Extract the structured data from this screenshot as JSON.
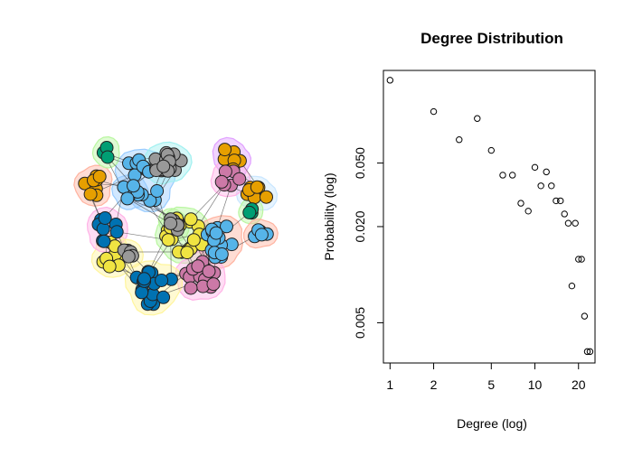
{
  "network": {
    "community_colors": [
      "#56B4E9",
      "#999999",
      "#F0E442",
      "#0072B2",
      "#CC79A7",
      "#E69F00",
      "#009E73",
      "#D55E00"
    ],
    "hull_colors": [
      "#99CCFF",
      "#FFF59D",
      "#B9F6A0",
      "#FFB3A0",
      "#E0A0FF",
      "#A0F0F0",
      "#FFB3E6",
      "#C8E6FF"
    ],
    "node_count": 200
  },
  "chart_data": {
    "type": "scatter",
    "title": "Degree Distribution",
    "xlabel": "Degree (log)",
    "ylabel": "Probability (log)",
    "log_x": true,
    "log_y": true,
    "xlim": [
      0.9,
      26
    ],
    "ylim": [
      0.0028,
      0.19
    ],
    "x_ticks": [
      1,
      2,
      5,
      10,
      20
    ],
    "x_tick_labels": [
      "1",
      "2",
      "5",
      "10",
      "20"
    ],
    "y_ticks": [
      0.005,
      0.02,
      0.05
    ],
    "y_tick_labels": [
      "0.005",
      "0.020",
      "0.050"
    ],
    "grid": false,
    "marker": "open-circle",
    "points": [
      {
        "x": 1,
        "y": 0.165
      },
      {
        "x": 2,
        "y": 0.105
      },
      {
        "x": 3,
        "y": 0.07
      },
      {
        "x": 4,
        "y": 0.095
      },
      {
        "x": 5,
        "y": 0.06
      },
      {
        "x": 6,
        "y": 0.042
      },
      {
        "x": 7,
        "y": 0.042
      },
      {
        "x": 8,
        "y": 0.028
      },
      {
        "x": 9,
        "y": 0.025
      },
      {
        "x": 10,
        "y": 0.047
      },
      {
        "x": 11,
        "y": 0.036
      },
      {
        "x": 12,
        "y": 0.044
      },
      {
        "x": 13,
        "y": 0.036
      },
      {
        "x": 14,
        "y": 0.029
      },
      {
        "x": 15,
        "y": 0.029
      },
      {
        "x": 16,
        "y": 0.024
      },
      {
        "x": 17,
        "y": 0.021
      },
      {
        "x": 19,
        "y": 0.021
      },
      {
        "x": 20,
        "y": 0.0125
      },
      {
        "x": 21,
        "y": 0.0125
      },
      {
        "x": 18,
        "y": 0.0085
      },
      {
        "x": 22,
        "y": 0.0055
      },
      {
        "x": 23,
        "y": 0.0033
      },
      {
        "x": 24,
        "y": 0.0033
      }
    ]
  }
}
